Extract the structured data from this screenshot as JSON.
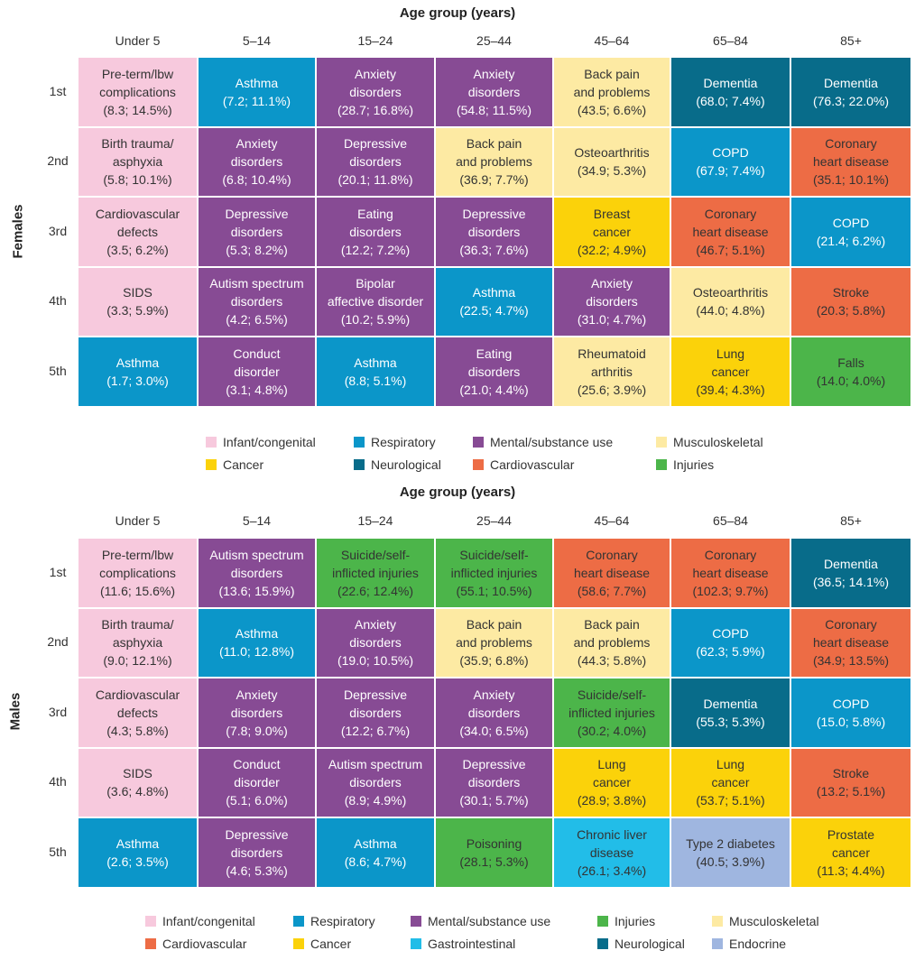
{
  "chart_data": [
    {
      "type": "table",
      "panel": "Females",
      "title": "Age group (years)",
      "columns": [
        "Under 5",
        "5–14",
        "15–24",
        "25–44",
        "45–64",
        "65–84",
        "85+"
      ],
      "ranks": [
        "1st",
        "2nd",
        "3rd",
        "4th",
        "5th"
      ],
      "rows": [
        [
          {
            "text": "Pre-term/lbw\ncomplications\n(8.3; 14.5%)",
            "cat": "infant"
          },
          {
            "text": "Asthma\n(7.2; 11.1%)",
            "cat": "respiratory"
          },
          {
            "text": "Anxiety\ndisorders\n(28.7; 16.8%)",
            "cat": "mental"
          },
          {
            "text": "Anxiety\ndisorders\n(54.8; 11.5%)",
            "cat": "mental"
          },
          {
            "text": "Back pain\nand problems\n(43.5; 6.6%)",
            "cat": "musculoskeletal"
          },
          {
            "text": "Dementia\n(68.0; 7.4%)",
            "cat": "neurological"
          },
          {
            "text": "Dementia\n(76.3; 22.0%)",
            "cat": "neurological"
          }
        ],
        [
          {
            "text": "Birth trauma/\nasphyxia\n(5.8; 10.1%)",
            "cat": "infant"
          },
          {
            "text": "Anxiety\ndisorders\n(6.8; 10.4%)",
            "cat": "mental"
          },
          {
            "text": "Depressive\ndisorders\n(20.1; 11.8%)",
            "cat": "mental"
          },
          {
            "text": "Back pain\nand problems\n(36.9; 7.7%)",
            "cat": "musculoskeletal"
          },
          {
            "text": "Osteoarthritis\n(34.9; 5.3%)",
            "cat": "musculoskeletal"
          },
          {
            "text": "COPD\n(67.9; 7.4%)",
            "cat": "respiratory"
          },
          {
            "text": "Coronary\nheart disease\n(35.1; 10.1%)",
            "cat": "cardiovascular"
          }
        ],
        [
          {
            "text": "Cardiovascular\ndefects\n(3.5; 6.2%)",
            "cat": "infant"
          },
          {
            "text": "Depressive\ndisorders\n(5.3; 8.2%)",
            "cat": "mental"
          },
          {
            "text": "Eating\ndisorders\n(12.2; 7.2%)",
            "cat": "mental"
          },
          {
            "text": "Depressive\ndisorders\n(36.3; 7.6%)",
            "cat": "mental"
          },
          {
            "text": "Breast\ncancer\n(32.2; 4.9%)",
            "cat": "cancer"
          },
          {
            "text": "Coronary\nheart disease\n(46.7; 5.1%)",
            "cat": "cardiovascular"
          },
          {
            "text": "COPD\n(21.4; 6.2%)",
            "cat": "respiratory"
          }
        ],
        [
          {
            "text": "SIDS\n(3.3; 5.9%)",
            "cat": "infant"
          },
          {
            "text": "Autism spectrum\ndisorders\n(4.2; 6.5%)",
            "cat": "mental"
          },
          {
            "text": "Bipolar\naffective disorder\n(10.2; 5.9%)",
            "cat": "mental"
          },
          {
            "text": "Asthma\n(22.5; 4.7%)",
            "cat": "respiratory"
          },
          {
            "text": "Anxiety\ndisorders\n(31.0; 4.7%)",
            "cat": "mental"
          },
          {
            "text": "Osteoarthritis\n(44.0; 4.8%)",
            "cat": "musculoskeletal"
          },
          {
            "text": "Stroke\n(20.3; 5.8%)",
            "cat": "cardiovascular"
          }
        ],
        [
          {
            "text": "Asthma\n(1.7; 3.0%)",
            "cat": "respiratory"
          },
          {
            "text": "Conduct\ndisorder\n(3.1; 4.8%)",
            "cat": "mental"
          },
          {
            "text": "Asthma\n(8.8; 5.1%)",
            "cat": "respiratory"
          },
          {
            "text": "Eating\ndisorders\n(21.0; 4.4%)",
            "cat": "mental"
          },
          {
            "text": "Rheumatoid\narthritis\n(25.6; 3.9%)",
            "cat": "musculoskeletal"
          },
          {
            "text": "Lung\ncancer\n(39.4; 4.3%)",
            "cat": "cancer"
          },
          {
            "text": "Falls\n(14.0; 4.0%)",
            "cat": "injuries"
          }
        ]
      ],
      "legend": [
        {
          "label": "Infant/congenital",
          "cat": "infant"
        },
        {
          "label": "Respiratory",
          "cat": "respiratory"
        },
        {
          "label": "Mental/substance use",
          "cat": "mental"
        },
        {
          "label": "Musculoskeletal",
          "cat": "musculoskeletal"
        },
        {
          "label": "Cancer",
          "cat": "cancer"
        },
        {
          "label": "Neurological",
          "cat": "neurological"
        },
        {
          "label": "Cardiovascular",
          "cat": "cardiovascular"
        },
        {
          "label": "Injuries",
          "cat": "injuries"
        }
      ]
    },
    {
      "type": "table",
      "panel": "Males",
      "title": "Age group (years)",
      "columns": [
        "Under 5",
        "5–14",
        "15–24",
        "25–44",
        "45–64",
        "65–84",
        "85+"
      ],
      "ranks": [
        "1st",
        "2nd",
        "3rd",
        "4th",
        "5th"
      ],
      "rows": [
        [
          {
            "text": "Pre-term/lbw\ncomplications\n(11.6; 15.6%)",
            "cat": "infant"
          },
          {
            "text": "Autism spectrum\ndisorders\n(13.6; 15.9%)",
            "cat": "mental"
          },
          {
            "text": "Suicide/self-\ninflicted injuries\n(22.6; 12.4%)",
            "cat": "injuries"
          },
          {
            "text": "Suicide/self-\ninflicted injuries\n(55.1; 10.5%)",
            "cat": "injuries"
          },
          {
            "text": "Coronary\nheart disease\n(58.6; 7.7%)",
            "cat": "cardiovascular"
          },
          {
            "text": "Coronary\nheart disease\n(102.3; 9.7%)",
            "cat": "cardiovascular"
          },
          {
            "text": "Dementia\n(36.5; 14.1%)",
            "cat": "neurological"
          }
        ],
        [
          {
            "text": "Birth trauma/\nasphyxia\n(9.0; 12.1%)",
            "cat": "infant"
          },
          {
            "text": "Asthma\n(11.0; 12.8%)",
            "cat": "respiratory"
          },
          {
            "text": "Anxiety\ndisorders\n(19.0; 10.5%)",
            "cat": "mental"
          },
          {
            "text": "Back pain\nand problems\n(35.9; 6.8%)",
            "cat": "musculoskeletal"
          },
          {
            "text": "Back pain\nand problems\n(44.3; 5.8%)",
            "cat": "musculoskeletal"
          },
          {
            "text": "COPD\n(62.3; 5.9%)",
            "cat": "respiratory"
          },
          {
            "text": "Coronary\nheart disease\n(34.9; 13.5%)",
            "cat": "cardiovascular"
          }
        ],
        [
          {
            "text": "Cardiovascular\ndefects\n(4.3; 5.8%)",
            "cat": "infant"
          },
          {
            "text": "Anxiety\ndisorders\n(7.8; 9.0%)",
            "cat": "mental"
          },
          {
            "text": "Depressive\ndisorders\n(12.2; 6.7%)",
            "cat": "mental"
          },
          {
            "text": "Anxiety\ndisorders\n(34.0; 6.5%)",
            "cat": "mental"
          },
          {
            "text": "Suicide/self-\ninflicted injuries\n(30.2; 4.0%)",
            "cat": "injuries"
          },
          {
            "text": "Dementia\n(55.3; 5.3%)",
            "cat": "neurological"
          },
          {
            "text": "COPD\n(15.0; 5.8%)",
            "cat": "respiratory"
          }
        ],
        [
          {
            "text": "SIDS\n(3.6; 4.8%)",
            "cat": "infant"
          },
          {
            "text": "Conduct\ndisorder\n(5.1; 6.0%)",
            "cat": "mental"
          },
          {
            "text": "Autism spectrum\ndisorders\n(8.9; 4.9%)",
            "cat": "mental"
          },
          {
            "text": "Depressive\ndisorders\n(30.1; 5.7%)",
            "cat": "mental"
          },
          {
            "text": "Lung\ncancer\n(28.9; 3.8%)",
            "cat": "cancer"
          },
          {
            "text": "Lung\ncancer\n(53.7; 5.1%)",
            "cat": "cancer"
          },
          {
            "text": "Stroke\n(13.2; 5.1%)",
            "cat": "cardiovascular"
          }
        ],
        [
          {
            "text": "Asthma\n(2.6; 3.5%)",
            "cat": "respiratory"
          },
          {
            "text": "Depressive\ndisorders\n(4.6; 5.3%)",
            "cat": "mental"
          },
          {
            "text": "Asthma\n(8.6; 4.7%)",
            "cat": "respiratory"
          },
          {
            "text": "Poisoning\n(28.1; 5.3%)",
            "cat": "injuries"
          },
          {
            "text": "Chronic liver\ndisease\n(26.1; 3.4%)",
            "cat": "gastrointestinal"
          },
          {
            "text": "Type 2 diabetes\n(40.5; 3.9%)",
            "cat": "endocrine"
          },
          {
            "text": "Prostate\ncancer\n(11.3; 4.4%)",
            "cat": "cancer"
          }
        ]
      ],
      "legend": [
        {
          "label": "Infant/congenital",
          "cat": "infant"
        },
        {
          "label": "Respiratory",
          "cat": "respiratory"
        },
        {
          "label": "Mental/substance use",
          "cat": "mental"
        },
        {
          "label": "Injuries",
          "cat": "injuries"
        },
        {
          "label": "Musculoskeletal",
          "cat": "musculoskeletal"
        },
        {
          "label": "Cardiovascular",
          "cat": "cardiovascular"
        },
        {
          "label": "Cancer",
          "cat": "cancer"
        },
        {
          "label": "Gastrointestinal",
          "cat": "gastrointestinal"
        },
        {
          "label": "Neurological",
          "cat": "neurological"
        },
        {
          "label": "Endocrine",
          "cat": "endocrine"
        }
      ]
    }
  ],
  "colors": {
    "infant": {
      "bg": "#f7c9dd",
      "fg": "#333333"
    },
    "respiratory": {
      "bg": "#0b96c9",
      "fg": "#ffffff"
    },
    "mental": {
      "bg": "#874b94",
      "fg": "#ffffff"
    },
    "musculoskeletal": {
      "bg": "#fdeaa3",
      "fg": "#333333"
    },
    "cancer": {
      "bg": "#fbd20a",
      "fg": "#333333"
    },
    "neurological": {
      "bg": "#086c8a",
      "fg": "#ffffff"
    },
    "cardiovascular": {
      "bg": "#ed6c45",
      "fg": "#333333"
    },
    "injuries": {
      "bg": "#4cb54a",
      "fg": "#333333"
    },
    "gastrointestinal": {
      "bg": "#22bde8",
      "fg": "#333333"
    },
    "endocrine": {
      "bg": "#9fb6e0",
      "fg": "#333333"
    }
  }
}
